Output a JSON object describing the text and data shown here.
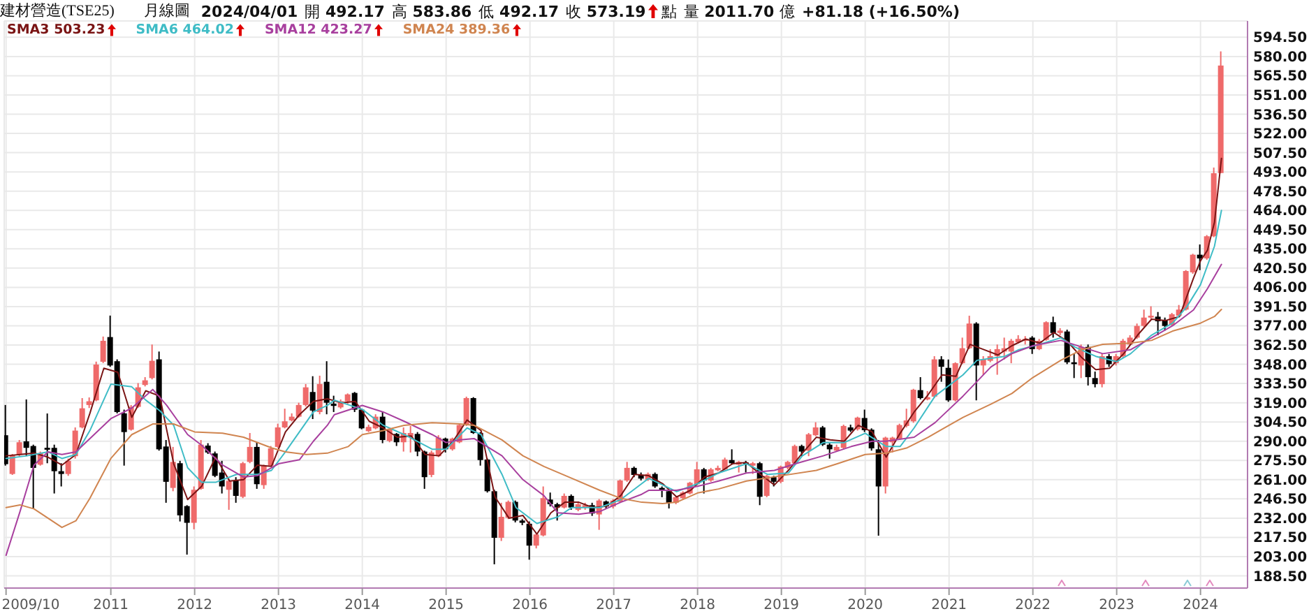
{
  "chart_data": {
    "type": "candlestick",
    "title": "建材營造(TSE25)",
    "subtitle": "月線圖",
    "annotations": [
      "2024/04/01",
      "開 492.17",
      "高 583.86",
      "低 492.17",
      "收 573.19",
      "點",
      "量 2011.70 億",
      "+81.18 (+16.50%)"
    ],
    "legend": "top left",
    "grid": true,
    "xlim": [
      "2009-09-23",
      "2024-07-23"
    ],
    "xticks": [
      {
        "value": "2009-10",
        "label": "2009/10"
      },
      {
        "value": "2011-01",
        "label": "2011"
      },
      {
        "value": "2012-01",
        "label": "2012"
      },
      {
        "value": "2013-01",
        "label": "2013"
      },
      {
        "value": "2014-01",
        "label": "2014"
      },
      {
        "value": "2015-01",
        "label": "2015"
      },
      {
        "value": "2016-01",
        "label": "2016"
      },
      {
        "value": "2017-01",
        "label": "2017"
      },
      {
        "value": "2018-01",
        "label": "2018"
      },
      {
        "value": "2019-01",
        "label": "2019"
      },
      {
        "value": "2020-01",
        "label": "2020"
      },
      {
        "value": "2021-01",
        "label": "2021"
      },
      {
        "value": "2022-01",
        "label": "2022"
      },
      {
        "value": "2023-01",
        "label": "2023"
      },
      {
        "value": "2024-01",
        "label": "2024"
      }
    ],
    "ylim": [
      179.3,
      606.8
    ],
    "yticks": [
      {
        "value": 188.5,
        "label": "188.50"
      },
      {
        "value": 203,
        "label": "203.00"
      },
      {
        "value": 217.5,
        "label": "217.50"
      },
      {
        "value": 232,
        "label": "232.00"
      },
      {
        "value": 246.5,
        "label": "246.50"
      },
      {
        "value": 261,
        "label": "261.00"
      },
      {
        "value": 275.5,
        "label": "275.50"
      },
      {
        "value": 290,
        "label": "290.00"
      },
      {
        "value": 304.5,
        "label": "304.50"
      },
      {
        "value": 319,
        "label": "319.00"
      },
      {
        "value": 333.5,
        "label": "333.50"
      },
      {
        "value": 348,
        "label": "348.00"
      },
      {
        "value": 362.5,
        "label": "362.50"
      },
      {
        "value": 377,
        "label": "377.00"
      },
      {
        "value": 391.5,
        "label": "391.50"
      },
      {
        "value": 406,
        "label": "406.00"
      },
      {
        "value": 420.5,
        "label": "420.50"
      },
      {
        "value": 435,
        "label": "435.00"
      },
      {
        "value": 449.5,
        "label": "449.50"
      },
      {
        "value": 464,
        "label": "464.00"
      },
      {
        "value": 478.5,
        "label": "478.50"
      },
      {
        "value": 493,
        "label": "493.00"
      },
      {
        "value": 507.5,
        "label": "507.50"
      },
      {
        "value": 522,
        "label": "522.00"
      },
      {
        "value": 536.5,
        "label": "536.50"
      },
      {
        "value": 551,
        "label": "551.00"
      },
      {
        "value": 565.5,
        "label": "565.50"
      },
      {
        "value": 580,
        "label": "580.00"
      },
      {
        "value": 594.5,
        "label": "594.50"
      }
    ],
    "x": [
      "2009-10",
      "2009-11",
      "2009-12",
      "2010-01",
      "2010-02",
      "2010-03",
      "2010-04",
      "2010-05",
      "2010-06",
      "2010-07",
      "2010-08",
      "2010-09",
      "2010-10",
      "2010-11",
      "2010-12",
      "2011-01",
      "2011-02",
      "2011-03",
      "2011-04",
      "2011-05",
      "2011-06",
      "2011-07",
      "2011-08",
      "2011-09",
      "2011-10",
      "2011-11",
      "2011-12",
      "2012-01",
      "2012-02",
      "2012-03",
      "2012-04",
      "2012-05",
      "2012-06",
      "2012-07",
      "2012-08",
      "2012-09",
      "2012-10",
      "2012-11",
      "2012-12",
      "2013-01",
      "2013-02",
      "2013-03",
      "2013-04",
      "2013-05",
      "2013-06",
      "2013-07",
      "2013-08",
      "2013-09",
      "2013-10",
      "2013-11",
      "2013-12",
      "2014-01",
      "2014-02",
      "2014-03",
      "2014-04",
      "2014-05",
      "2014-06",
      "2014-07",
      "2014-08",
      "2014-09",
      "2014-10",
      "2014-11",
      "2014-12",
      "2015-01",
      "2015-02",
      "2015-03",
      "2015-04",
      "2015-05",
      "2015-06",
      "2015-07",
      "2015-08",
      "2015-09",
      "2015-10",
      "2015-11",
      "2015-12",
      "2016-01",
      "2016-02",
      "2016-03",
      "2016-04",
      "2016-05",
      "2016-06",
      "2016-07",
      "2016-08",
      "2016-09",
      "2016-10",
      "2016-11",
      "2016-12",
      "2017-01",
      "2017-02",
      "2017-03",
      "2017-04",
      "2017-05",
      "2017-06",
      "2017-07",
      "2017-08",
      "2017-09",
      "2017-10",
      "2017-11",
      "2017-12",
      "2018-01",
      "2018-02",
      "2018-03",
      "2018-04",
      "2018-05",
      "2018-06",
      "2018-07",
      "2018-08",
      "2018-09",
      "2018-10",
      "2018-11",
      "2018-12",
      "2019-01",
      "2019-02",
      "2019-03",
      "2019-04",
      "2019-05",
      "2019-06",
      "2019-07",
      "2019-08",
      "2019-09",
      "2019-10",
      "2019-11",
      "2019-12",
      "2020-01",
      "2020-02",
      "2020-03",
      "2020-04",
      "2020-05",
      "2020-06",
      "2020-07",
      "2020-08",
      "2020-09",
      "2020-10",
      "2020-11",
      "2020-12",
      "2021-01",
      "2021-02",
      "2021-03",
      "2021-04",
      "2021-05",
      "2021-06",
      "2021-07",
      "2021-08",
      "2021-09",
      "2021-10",
      "2021-11",
      "2021-12",
      "2022-01",
      "2022-02",
      "2022-03",
      "2022-04",
      "2022-05",
      "2022-06",
      "2022-07",
      "2022-08",
      "2022-09",
      "2022-10",
      "2022-11",
      "2022-12",
      "2023-01",
      "2023-02",
      "2023-03",
      "2023-04",
      "2023-05",
      "2023-06",
      "2023-07",
      "2023-08",
      "2023-09",
      "2023-10",
      "2023-11",
      "2023-12",
      "2024-01",
      "2024-02",
      "2024-03",
      "2024-04"
    ],
    "ohlc": [
      [
        294.5,
        317.3,
        271.6,
        272.7
      ],
      [
        265.3,
        280.4,
        264.6,
        279.4
      ],
      [
        279.7,
        290.9,
        278.7,
        289.2
      ],
      [
        289.9,
        321.5,
        278.7,
        285.0
      ],
      [
        286.4,
        287.4,
        239.4,
        269.9
      ],
      [
        272.3,
        282.2,
        271.6,
        281.1
      ],
      [
        285.0,
        310.9,
        273.4,
        283.6
      ],
      [
        285.0,
        287.4,
        250.6,
        267.4
      ],
      [
        267.4,
        273.4,
        255.9,
        265.3
      ],
      [
        265.3,
        276.9,
        263.9,
        275.2
      ],
      [
        278.7,
        300.4,
        276.9,
        298.0
      ],
      [
        300.4,
        322.5,
        299.7,
        314.8
      ],
      [
        317.3,
        323.0,
        315.0,
        320.1
      ],
      [
        320.8,
        350.0,
        320.1,
        347.8
      ],
      [
        349.9,
        368.9,
        348.9,
        365.7
      ],
      [
        368.5,
        384.7,
        346.1,
        347.1
      ],
      [
        350.3,
        351.7,
        311.0,
        312.0
      ],
      [
        311.0,
        313.8,
        271.6,
        296.9
      ],
      [
        298.7,
        317.3,
        298.0,
        315.9
      ],
      [
        315.9,
        333.8,
        315.2,
        330.6
      ],
      [
        332.4,
        338.3,
        331.3,
        335.9
      ],
      [
        337.6,
        362.9,
        336.6,
        350.6
      ],
      [
        351.7,
        357.6,
        282.9,
        283.9
      ],
      [
        286.0,
        290.9,
        243.6,
        259.4
      ],
      [
        254.8,
        285.7,
        252.3,
        274.4
      ],
      [
        273.4,
        275.2,
        229.5,
        234.1
      ],
      [
        241.1,
        241.8,
        204.5,
        228.5
      ],
      [
        228.5,
        255.9,
        223.6,
        253.4
      ],
      [
        254.1,
        290.9,
        253.4,
        287.4
      ],
      [
        286.7,
        288.5,
        280.4,
        281.5
      ],
      [
        280.8,
        282.2,
        262.9,
        263.9
      ],
      [
        266.4,
        275.2,
        250.6,
        255.9
      ],
      [
        253.4,
        261.8,
        238.3,
        260.1
      ],
      [
        260.4,
        262.9,
        243.6,
        248.8
      ],
      [
        248.1,
        274.4,
        247.1,
        273.4
      ],
      [
        274.4,
        296.2,
        273.4,
        285.7
      ],
      [
        285.7,
        289.2,
        254.1,
        257.6
      ],
      [
        256.9,
        272.3,
        254.1,
        271.6
      ],
      [
        271.6,
        286.4,
        270.9,
        284.6
      ],
      [
        285.7,
        303.2,
        285.0,
        300.4
      ],
      [
        300.4,
        314.5,
        299.7,
        305.0
      ],
      [
        305.7,
        311.0,
        305.0,
        308.5
      ],
      [
        308.5,
        319.0,
        307.8,
        317.3
      ],
      [
        317.3,
        333.1,
        316.2,
        330.6
      ],
      [
        327.1,
        339.0,
        306.7,
        313.1
      ],
      [
        312.0,
        339.4,
        310.3,
        333.1
      ],
      [
        334.8,
        350.3,
        310.3,
        319.0
      ],
      [
        318.3,
        324.3,
        312.0,
        316.6
      ],
      [
        315.5,
        321.5,
        314.5,
        320.1
      ],
      [
        320.1,
        326.0,
        317.3,
        325.3
      ],
      [
        326.4,
        327.1,
        312.0,
        313.8
      ],
      [
        313.8,
        314.5,
        299.0,
        299.7
      ],
      [
        297.6,
        302.5,
        296.9,
        300.8
      ],
      [
        299.7,
        310.3,
        299.0,
        308.5
      ],
      [
        308.5,
        312.0,
        288.5,
        290.9
      ],
      [
        290.2,
        300.4,
        289.2,
        299.0
      ],
      [
        295.5,
        296.2,
        286.4,
        289.2
      ],
      [
        289.2,
        300.4,
        282.2,
        296.2
      ],
      [
        293.4,
        301.5,
        281.5,
        296.2
      ],
      [
        295.5,
        296.9,
        278.7,
        282.2
      ],
      [
        282.2,
        282.9,
        254.1,
        262.9
      ],
      [
        264.6,
        282.9,
        262.9,
        281.5
      ],
      [
        278.7,
        294.5,
        278.0,
        292.7
      ],
      [
        292.0,
        292.7,
        281.5,
        283.9
      ],
      [
        283.9,
        292.7,
        282.9,
        292.0
      ],
      [
        289.2,
        303.2,
        288.5,
        302.2
      ],
      [
        302.5,
        323.6,
        301.5,
        322.5
      ],
      [
        322.5,
        323.2,
        295.5,
        296.2
      ],
      [
        296.2,
        296.9,
        271.6,
        275.8
      ],
      [
        276.2,
        276.9,
        251.3,
        252.3
      ],
      [
        252.3,
        253.4,
        197.2,
        217.2
      ],
      [
        217.2,
        243.6,
        214.8,
        233.0
      ],
      [
        232.3,
        245.3,
        231.3,
        244.3
      ],
      [
        244.3,
        245.3,
        228.8,
        230.2
      ],
      [
        230.2,
        231.3,
        226.7,
        228.5
      ],
      [
        227.8,
        229.5,
        200.7,
        211.3
      ],
      [
        211.3,
        220.7,
        209.2,
        219.7
      ],
      [
        219.0,
        255.9,
        218.3,
        247.1
      ],
      [
        246.0,
        251.3,
        240.8,
        242.5
      ],
      [
        242.5,
        243.6,
        230.2,
        240.0
      ],
      [
        240.0,
        250.6,
        239.3,
        248.8
      ],
      [
        248.8,
        249.9,
        238.3,
        240.0
      ],
      [
        238.3,
        244.3,
        237.2,
        242.5
      ],
      [
        240.0,
        243.6,
        238.3,
        241.8
      ],
      [
        241.8,
        243.6,
        233.7,
        235.5
      ],
      [
        234.8,
        246.4,
        223.2,
        245.3
      ],
      [
        244.6,
        245.3,
        239.3,
        240.8
      ],
      [
        240.8,
        246.4,
        239.3,
        245.3
      ],
      [
        244.3,
        261.1,
        243.6,
        260.4
      ],
      [
        260.4,
        274.4,
        259.4,
        269.9
      ],
      [
        269.9,
        270.9,
        262.9,
        264.6
      ],
      [
        264.6,
        266.4,
        260.4,
        261.8
      ],
      [
        261.1,
        266.4,
        260.1,
        265.3
      ],
      [
        265.3,
        266.4,
        254.8,
        255.9
      ],
      [
        254.8,
        255.9,
        247.8,
        253.4
      ],
      [
        252.3,
        253.4,
        239.3,
        243.6
      ],
      [
        243.6,
        248.8,
        242.5,
        247.8
      ],
      [
        247.1,
        252.3,
        246.4,
        251.3
      ],
      [
        250.6,
        259.4,
        249.9,
        258.7
      ],
      [
        257.6,
        274.4,
        256.9,
        268.8
      ],
      [
        268.8,
        269.9,
        250.6,
        260.4
      ],
      [
        260.4,
        269.9,
        259.4,
        268.8
      ],
      [
        268.1,
        271.6,
        267.4,
        269.9
      ],
      [
        268.8,
        277.6,
        268.1,
        276.2
      ],
      [
        275.8,
        283.9,
        272.3,
        273.4
      ],
      [
        272.3,
        275.2,
        266.4,
        274.4
      ],
      [
        274.1,
        275.2,
        266.4,
        273.0
      ],
      [
        271.6,
        274.4,
        265.3,
        273.4
      ],
      [
        273.4,
        274.4,
        241.8,
        248.1
      ],
      [
        248.8,
        264.6,
        247.8,
        263.9
      ],
      [
        262.9,
        263.9,
        255.9,
        259.4
      ],
      [
        259.4,
        271.6,
        258.3,
        270.9
      ],
      [
        269.9,
        275.2,
        268.8,
        274.4
      ],
      [
        273.4,
        287.4,
        272.3,
        286.4
      ],
      [
        286.4,
        287.4,
        278.7,
        282.2
      ],
      [
        282.9,
        296.2,
        278.7,
        295.2
      ],
      [
        294.5,
        304.3,
        293.8,
        300.4
      ],
      [
        300.4,
        301.5,
        286.4,
        287.4
      ],
      [
        287.4,
        288.5,
        276.9,
        283.9
      ],
      [
        282.9,
        287.4,
        282.2,
        285.7
      ],
      [
        285.0,
        302.5,
        283.9,
        301.5
      ],
      [
        300.4,
        302.5,
        296.9,
        298.0
      ],
      [
        299.0,
        308.5,
        298.0,
        307.8
      ],
      [
        307.5,
        313.8,
        296.9,
        298.3
      ],
      [
        298.7,
        299.7,
        282.9,
        284.6
      ],
      [
        283.9,
        290.9,
        218.8,
        255.9
      ],
      [
        255.9,
        293.4,
        250.6,
        292.7
      ],
      [
        289.2,
        293.4,
        281.5,
        292.7
      ],
      [
        292.0,
        303.2,
        290.9,
        302.2
      ],
      [
        301.5,
        314.5,
        300.4,
        305.7
      ],
      [
        305.0,
        329.5,
        303.9,
        328.8
      ],
      [
        328.5,
        338.3,
        321.5,
        322.5
      ],
      [
        321.5,
        327.8,
        320.8,
        323.2
      ],
      [
        323.6,
        354.1,
        322.5,
        351.7
      ],
      [
        351.7,
        354.1,
        334.8,
        346.1
      ],
      [
        345.3,
        351.6,
        319.7,
        320.8
      ],
      [
        320.8,
        349.5,
        320.0,
        348.8
      ],
      [
        348.8,
        368.1,
        348.1,
        360.1
      ],
      [
        360.1,
        384.6,
        359.4,
        378.7
      ],
      [
        378.7,
        379.7,
        320.8,
        347.1
      ],
      [
        347.1,
        354.1,
        340.1,
        351.6
      ],
      [
        350.6,
        359.4,
        349.5,
        354.1
      ],
      [
        354.1,
        362.9,
        340.1,
        359.4
      ],
      [
        357.6,
        368.1,
        351.6,
        360.1
      ],
      [
        357.6,
        367.1,
        348.8,
        365.7
      ],
      [
        364.6,
        369.9,
        363.6,
        367.1
      ],
      [
        365.7,
        369.2,
        362.9,
        367.1
      ],
      [
        368.1,
        369.2,
        355.8,
        359.4
      ],
      [
        359.4,
        367.1,
        358.7,
        365.7
      ],
      [
        366.4,
        380.4,
        365.7,
        379.7
      ],
      [
        379.7,
        383.9,
        368.1,
        371.6
      ],
      [
        371.6,
        375.2,
        369.9,
        373.4
      ],
      [
        372.7,
        374.1,
        348.1,
        349.5
      ],
      [
        349.5,
        355.8,
        337.6,
        348.1
      ],
      [
        347.1,
        362.9,
        337.6,
        361.1
      ],
      [
        361.1,
        362.9,
        332.0,
        338.3
      ],
      [
        337.6,
        342.5,
        330.6,
        333.0
      ],
      [
        333.0,
        355.8,
        330.6,
        354.1
      ],
      [
        354.1,
        355.8,
        346.0,
        348.1
      ],
      [
        348.8,
        355.8,
        347.1,
        354.1
      ],
      [
        354.1,
        367.1,
        353.0,
        365.7
      ],
      [
        362.9,
        369.9,
        362.2,
        368.1
      ],
      [
        368.1,
        378.7,
        367.1,
        376.9
      ],
      [
        376.9,
        389.2,
        376.2,
        383.2
      ],
      [
        383.2,
        391.7,
        382.2,
        384.6
      ],
      [
        383.9,
        387.4,
        369.9,
        380.4
      ],
      [
        381.1,
        383.2,
        373.4,
        376.9
      ],
      [
        377.6,
        386.7,
        376.9,
        385.7
      ],
      [
        384.6,
        392.7,
        383.9,
        389.2
      ],
      [
        389.2,
        419.0,
        388.5,
        418.3
      ],
      [
        417.3,
        431.3,
        416.2,
        430.6
      ],
      [
        430.6,
        438.3,
        419.0,
        427.8
      ],
      [
        427.8,
        445.4,
        426.8,
        444.5
      ],
      [
        444.5,
        496.3,
        443.8,
        492.0
      ],
      [
        492.17,
        583.86,
        492.17,
        573.19
      ]
    ],
    "colors": [
      "#000000",
      "#ef6a6a",
      "#ef6a6a",
      "#000000",
      "#000000",
      "#ef6a6a",
      "#000000",
      "#000000",
      "#000000",
      "#ef6a6a",
      "#ef6a6a",
      "#ef6a6a",
      "#ef6a6a",
      "#ef6a6a",
      "#ef6a6a",
      "#000000",
      "#000000",
      "#000000",
      "#ef6a6a",
      "#ef6a6a",
      "#ef6a6a",
      "#ef6a6a",
      "#000000",
      "#000000",
      "#ef6a6a",
      "#000000",
      "#000000",
      "#ef6a6a",
      "#ef6a6a",
      "#000000",
      "#000000",
      "#000000",
      "#ef6a6a",
      "#000000",
      "#ef6a6a",
      "#ef6a6a",
      "#000000",
      "#ef6a6a",
      "#ef6a6a",
      "#ef6a6a",
      "#ef6a6a",
      "#ef6a6a",
      "#ef6a6a",
      "#ef6a6a",
      "#000000",
      "#ef6a6a",
      "#000000",
      "#000000",
      "#ef6a6a",
      "#ef6a6a",
      "#000000",
      "#000000",
      "#ef6a6a",
      "#ef6a6a",
      "#000000",
      "#ef6a6a",
      "#000000",
      "#ef6a6a",
      "#ef6a6a",
      "#000000",
      "#000000",
      "#ef6a6a",
      "#ef6a6a",
      "#000000",
      "#ef6a6a",
      "#ef6a6a",
      "#ef6a6a",
      "#000000",
      "#000000",
      "#000000",
      "#000000",
      "#ef6a6a",
      "#ef6a6a",
      "#000000",
      "#000000",
      "#000000",
      "#ef6a6a",
      "#ef6a6a",
      "#000000",
      "#000000",
      "#ef6a6a",
      "#000000",
      "#ef6a6a",
      "#ef6a6a",
      "#000000",
      "#ef6a6a",
      "#000000",
      "#ef6a6a",
      "#ef6a6a",
      "#ef6a6a",
      "#000000",
      "#000000",
      "#ef6a6a",
      "#000000",
      "#000000",
      "#000000",
      "#ef6a6a",
      "#ef6a6a",
      "#ef6a6a",
      "#ef6a6a",
      "#000000",
      "#ef6a6a",
      "#ef6a6a",
      "#ef6a6a",
      "#000000",
      "#ef6a6a",
      "#000000",
      "#ef6a6a",
      "#000000",
      "#ef6a6a",
      "#000000",
      "#ef6a6a",
      "#ef6a6a",
      "#ef6a6a",
      "#000000",
      "#ef6a6a",
      "#ef6a6a",
      "#000000",
      "#000000",
      "#ef6a6a",
      "#ef6a6a",
      "#000000",
      "#ef6a6a",
      "#000000",
      "#000000",
      "#000000",
      "#ef6a6a",
      "#ef6a6a",
      "#ef6a6a",
      "#ef6a6a",
      "#ef6a6a",
      "#000000",
      "#ef6a6a",
      "#ef6a6a",
      "#000000",
      "#000000",
      "#ef6a6a",
      "#ef6a6a",
      "#ef6a6a",
      "#000000",
      "#ef6a6a",
      "#ef6a6a",
      "#ef6a6a",
      "#ef6a6a",
      "#ef6a6a",
      "#ef6a6a",
      "#ef6a6a",
      "#000000",
      "#ef6a6a",
      "#ef6a6a",
      "#000000",
      "#ef6a6a",
      "#000000",
      "#000000",
      "#ef6a6a",
      "#000000",
      "#000000",
      "#ef6a6a",
      "#000000",
      "#ef6a6a",
      "#ef6a6a",
      "#ef6a6a",
      "#ef6a6a",
      "#ef6a6a",
      "#ef6a6a",
      "#000000",
      "#000000",
      "#ef6a6a",
      "#ef6a6a",
      "#ef6a6a",
      "#ef6a6a",
      "#000000",
      "#ef6a6a",
      "#ef6a6a",
      "#ef6a6a"
    ],
    "series": [
      {
        "name": "SMA3 503.23",
        "type": "line",
        "color": "#7a1414",
        "x": [
          "2009-10",
          "2009-12",
          "2010-02",
          "2010-04",
          "2010-06",
          "2010-08",
          "2010-10",
          "2010-12",
          "2011-02",
          "2011-04",
          "2011-06",
          "2011-08",
          "2011-10",
          "2011-12",
          "2012-02",
          "2012-04",
          "2012-06",
          "2012-08",
          "2012-10",
          "2012-12",
          "2013-02",
          "2013-04",
          "2013-06",
          "2013-08",
          "2013-10",
          "2013-12",
          "2014-02",
          "2014-04",
          "2014-06",
          "2014-08",
          "2014-10",
          "2014-12",
          "2015-02",
          "2015-04",
          "2015-06",
          "2015-08",
          "2015-10",
          "2015-12",
          "2016-02",
          "2016-04",
          "2016-06",
          "2016-08",
          "2016-10",
          "2016-12",
          "2017-02",
          "2017-04",
          "2017-06",
          "2017-08",
          "2017-10",
          "2017-12",
          "2018-02",
          "2018-04",
          "2018-06",
          "2018-08",
          "2018-10",
          "2018-12",
          "2019-02",
          "2019-04",
          "2019-06",
          "2019-08",
          "2019-10",
          "2019-12",
          "2020-02",
          "2020-04",
          "2020-06",
          "2020-08",
          "2020-10",
          "2020-12",
          "2021-02",
          "2021-04",
          "2021-06",
          "2021-08",
          "2021-10",
          "2021-12",
          "2022-02",
          "2022-04",
          "2022-06",
          "2022-08",
          "2022-10",
          "2022-12",
          "2023-02",
          "2023-04",
          "2023-06",
          "2023-08",
          "2023-10",
          "2023-12",
          "2024-01",
          "2024-02",
          "2024-03",
          "2024-04"
        ],
        "values": [
          279,
          280,
          281,
          278,
          272,
          280,
          311,
          345,
          342,
          308,
          328,
          324,
          273,
          246,
          256,
          278,
          260,
          261,
          272,
          271,
          297,
          310,
          320,
          322,
          319,
          320,
          305,
          300,
          293,
          294,
          280,
          279,
          290,
          306,
          298,
          248,
          232,
          234,
          220,
          236,
          244,
          244,
          240,
          241,
          249,
          265,
          264,
          258,
          248,
          253,
          263,
          266,
          273,
          274,
          265,
          257,
          268,
          281,
          293,
          291,
          290,
          302,
          297,
          278,
          296,
          312,
          325,
          340,
          339,
          363,
          359,
          355,
          362,
          367,
          364,
          372,
          365,
          353,
          344,
          345,
          356,
          370,
          382,
          381,
          384,
          413,
          426,
          434,
          455,
          503.23
        ]
      },
      {
        "name": "SMA6 464.02",
        "type": "line",
        "color": "#3fbcc6",
        "x": [
          "2009-10",
          "2010-01",
          "2010-04",
          "2010-06",
          "2010-08",
          "2010-10",
          "2011-01",
          "2011-04",
          "2011-06",
          "2011-08",
          "2011-10",
          "2011-12",
          "2012-02",
          "2012-04",
          "2012-07",
          "2012-10",
          "2012-12",
          "2013-02",
          "2013-06",
          "2013-08",
          "2013-09",
          "2014-01",
          "2014-04",
          "2014-07",
          "2014-11",
          "2015-01",
          "2015-04",
          "2015-06",
          "2015-09",
          "2015-11",
          "2016-02",
          "2016-05",
          "2016-07",
          "2016-11",
          "2017-02",
          "2017-05",
          "2017-06",
          "2017-10",
          "2018-01",
          "2018-04",
          "2018-08",
          "2018-11",
          "2019-02",
          "2019-04",
          "2019-07",
          "2019-10",
          "2020-01",
          "2020-04",
          "2020-06",
          "2020-08",
          "2020-11",
          "2021-03",
          "2021-05",
          "2021-09",
          "2021-11",
          "2022-02",
          "2022-05",
          "2022-07",
          "2022-10",
          "2023-01",
          "2023-03",
          "2023-06",
          "2023-09",
          "2023-11",
          "2024-01",
          "2024-03",
          "2024-04"
        ],
        "values": [
          277,
          279,
          282,
          277,
          280,
          298,
          333,
          331,
          321,
          313,
          302,
          270,
          259,
          259,
          265,
          265,
          268,
          282,
          312,
          317,
          321,
          314,
          302,
          295,
          284,
          284,
          300,
          295,
          265,
          240,
          228,
          233,
          240,
          240,
          246,
          258,
          262,
          252,
          258,
          266,
          273,
          265,
          266,
          279,
          289,
          289,
          296,
          286,
          286,
          300,
          324,
          340,
          351,
          354,
          359,
          363,
          368,
          361,
          354,
          350,
          356,
          370,
          379,
          391,
          408,
          437,
          464.02
        ]
      },
      {
        "name": "SMA12 423.27",
        "type": "line",
        "color": "#a83f9e",
        "x": [
          "2009-10",
          "2009-12",
          "2010-02",
          "2010-04",
          "2010-06",
          "2010-08",
          "2010-10",
          "2011-01",
          "2011-04",
          "2011-07",
          "2011-09",
          "2011-12",
          "2012-02",
          "2012-05",
          "2012-08",
          "2012-10",
          "2013-01",
          "2013-04",
          "2013-06",
          "2013-08",
          "2013-09",
          "2014-01",
          "2014-04",
          "2014-07",
          "2014-11",
          "2015-01",
          "2015-03",
          "2015-05",
          "2015-09",
          "2015-12",
          "2016-03",
          "2016-05",
          "2016-08",
          "2016-11",
          "2017-02",
          "2017-05",
          "2017-06",
          "2017-10",
          "2018-01",
          "2018-04",
          "2018-08",
          "2018-12",
          "2019-03",
          "2019-07",
          "2019-11",
          "2020-02",
          "2020-04",
          "2020-08",
          "2020-11",
          "2020-12",
          "2021-03",
          "2021-07",
          "2021-10",
          "2022-01",
          "2022-05",
          "2022-08",
          "2022-11",
          "2023-03",
          "2023-06",
          "2023-09",
          "2023-12",
          "2024-02",
          "2024-04"
        ],
        "values": [
          204,
          237,
          272,
          282,
          280,
          282,
          292,
          307,
          315,
          329,
          317,
          295,
          287,
          272,
          263,
          264,
          273,
          276,
          290,
          302,
          310,
          317,
          312,
          305,
          295,
          289,
          291,
          292,
          279,
          261,
          249,
          236,
          235,
          237,
          244,
          250,
          253,
          253,
          256,
          260,
          266,
          268,
          273,
          279,
          286,
          290,
          290,
          293,
          304,
          309,
          324,
          346,
          356,
          362,
          366,
          361,
          356,
          359,
          368,
          377,
          389,
          405,
          423.27
        ]
      },
      {
        "name": "SMA24 389.36",
        "type": "line",
        "color": "#d08550",
        "x": [
          "2009-10",
          "2009-12",
          "2010-02",
          "2010-04",
          "2010-06",
          "2010-08",
          "2010-10",
          "2011-01",
          "2011-04",
          "2011-07",
          "2011-10",
          "2012-01",
          "2012-05",
          "2012-08",
          "2012-12",
          "2013-02",
          "2013-05",
          "2013-08",
          "2013-11",
          "2014-01",
          "2014-04",
          "2014-07",
          "2014-11",
          "2015-03",
          "2015-05",
          "2015-09",
          "2015-12",
          "2016-03",
          "2016-07",
          "2016-11",
          "2017-02",
          "2017-05",
          "2017-08",
          "2017-10",
          "2018-01",
          "2018-04",
          "2018-08",
          "2019-01",
          "2019-06",
          "2019-09",
          "2020-01",
          "2020-04",
          "2020-07",
          "2020-10",
          "2020-12",
          "2021-03",
          "2021-07",
          "2021-10",
          "2022-01",
          "2022-05",
          "2022-08",
          "2022-11",
          "2023-03",
          "2023-06",
          "2023-09",
          "2024-01",
          "2024-03",
          "2024-04"
        ],
        "values": [
          240,
          242,
          239,
          232,
          225,
          230,
          247,
          277,
          295,
          303,
          303,
          297,
          296,
          293,
          285,
          282,
          280,
          281,
          286,
          295,
          298,
          302,
          304,
          303,
          302,
          291,
          279,
          271,
          262,
          253,
          247,
          244,
          243,
          244,
          251,
          254,
          260,
          264,
          268,
          273,
          280,
          281,
          285,
          293,
          299,
          308,
          318,
          326,
          338,
          351,
          359,
          363,
          364,
          366,
          373,
          379,
          384,
          389.36
        ]
      }
    ]
  }
}
